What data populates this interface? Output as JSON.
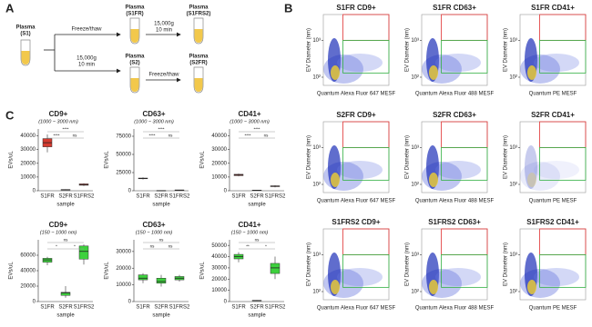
{
  "panel_labels": [
    "A",
    "B",
    "C"
  ],
  "diagram": {
    "nodes": [
      {
        "name": "Plasma",
        "id": "(S1)"
      },
      {
        "name": "Plasma",
        "id": "(S1FR)"
      },
      {
        "name": "Plasma",
        "id": "(S1FRS2)"
      },
      {
        "name": "Plasma",
        "id": "(S2)"
      },
      {
        "name": "Plasma",
        "id": "(S2FR)"
      }
    ],
    "steps": [
      {
        "lines": [
          "Freeze/thaw"
        ]
      },
      {
        "lines": [
          "15,000g",
          "10 min"
        ]
      },
      {
        "lines": [
          "15,000g",
          "10 min"
        ]
      },
      {
        "lines": [
          "Freeze/thaw"
        ]
      }
    ]
  },
  "flow_cytometry": {
    "y_label": "EV Diameter (nm)",
    "ylim": [
      60,
      5000
    ],
    "yticks": [
      {
        "value": 100,
        "label": "10²"
      },
      {
        "value": 1000,
        "label": "10³"
      }
    ],
    "plots": [
      {
        "title": "S1FR CD9+",
        "x_label": "Quantum Alexa Fluor 647 MESF"
      },
      {
        "title": "S1FR CD63+",
        "x_label": "Quantum Alexa Fluor 488 MESF"
      },
      {
        "title": "S1FR CD41+",
        "x_label": "Quantum PE MESF"
      },
      {
        "title": "S2FR CD9+",
        "x_label": "Quantum Alexa Fluor 647 MESF"
      },
      {
        "title": "S2FR CD63+",
        "x_label": "Quantum Alexa Fluor 488 MESF"
      },
      {
        "title": "S2FR CD41+",
        "x_label": "Quantum PE MESF"
      },
      {
        "title": "S1FRS2 CD9+",
        "x_label": "Quantum Alexa Fluor 647 MESF"
      },
      {
        "title": "S1FRS2 CD63+",
        "x_label": "Quantum Alexa Fluor 488 MESF"
      },
      {
        "title": "S1FRS2 CD41+",
        "x_label": "Quantum PE MESF"
      }
    ]
  },
  "chart_data": [
    {
      "type": "box",
      "title": "CD9+",
      "subtitle": "(1000 ~ 3000 nm)",
      "y_label": "EVs/uL",
      "x_label": "sample",
      "color": "#d43a2f",
      "categories": [
        "S1FR",
        "S2FR",
        "S1FRS2"
      ],
      "boxes": [
        {
          "min": 28000,
          "q1": 32000,
          "median": 35000,
          "q3": 38000,
          "max": 41000
        },
        {
          "min": 300,
          "q1": 500,
          "median": 700,
          "q3": 900,
          "max": 1100
        },
        {
          "min": 3500,
          "q1": 4000,
          "median": 4500,
          "q3": 5000,
          "max": 5500
        }
      ],
      "ylim": [
        0,
        45000
      ],
      "yticks": [
        0,
        10000,
        20000,
        30000,
        40000
      ],
      "comparisons": [
        "****",
        "ns",
        "****"
      ]
    },
    {
      "type": "box",
      "title": "CD63+",
      "subtitle": "(1000 ~ 3000 nm)",
      "y_label": "EVs/uL",
      "x_label": "sample",
      "color": "#d43a2f",
      "categories": [
        "S1FR",
        "S2FR",
        "S1FRS2"
      ],
      "boxes": [
        {
          "min": 15500,
          "q1": 16500,
          "median": 17000,
          "q3": 17500,
          "max": 18500
        },
        {
          "min": 0,
          "q1": 100,
          "median": 200,
          "q3": 300,
          "max": 400
        },
        {
          "min": 500,
          "q1": 700,
          "median": 900,
          "q3": 1100,
          "max": 1300
        }
      ],
      "ylim": [
        0,
        85000
      ],
      "yticks": [
        0,
        25000,
        50000,
        75000
      ],
      "comparisons": [
        "****",
        "ns",
        "****"
      ]
    },
    {
      "type": "box",
      "title": "CD41+",
      "subtitle": "(1000 ~ 3000 nm)",
      "y_label": "EVs/uL",
      "x_label": "sample",
      "color": "#d43a2f",
      "categories": [
        "S1FR",
        "S2FR",
        "S1FRS2"
      ],
      "boxes": [
        {
          "min": 10500,
          "q1": 11000,
          "median": 11500,
          "q3": 12000,
          "max": 12500
        },
        {
          "min": 200,
          "q1": 300,
          "median": 400,
          "q3": 500,
          "max": 600
        },
        {
          "min": 2500,
          "q1": 3000,
          "median": 3300,
          "q3": 3600,
          "max": 4000
        }
      ],
      "ylim": [
        0,
        45000
      ],
      "yticks": [
        0,
        10000,
        20000,
        30000,
        40000
      ],
      "comparisons": [
        "****",
        "ns",
        "****"
      ]
    },
    {
      "type": "box",
      "title": "CD9+",
      "subtitle": "(150 ~ 1000 nm)",
      "y_label": "EVs/uL",
      "x_label": "sample",
      "color": "#3dd13d",
      "categories": [
        "S1FR",
        "S2FR",
        "S1FRS2"
      ],
      "boxes": [
        {
          "min": 47000,
          "q1": 51000,
          "median": 54000,
          "q3": 56000,
          "max": 58000
        },
        {
          "min": 5000,
          "q1": 8000,
          "median": 11000,
          "q3": 12000,
          "max": 20000
        },
        {
          "min": 48000,
          "q1": 55000,
          "median": 65000,
          "q3": 72000,
          "max": 74000
        }
      ],
      "ylim": [
        0,
        80000
      ],
      "yticks": [
        0,
        20000,
        40000,
        60000
      ],
      "comparisons": [
        "*",
        "*",
        "ns"
      ]
    },
    {
      "type": "box",
      "title": "CD63+",
      "subtitle": "(150 ~ 1000 nm)",
      "y_label": "EVs/uL",
      "x_label": "sample",
      "color": "#3dd13d",
      "categories": [
        "S1FR",
        "S2FR",
        "S1FRS2"
      ],
      "boxes": [
        {
          "min": 11000,
          "q1": 13000,
          "median": 14000,
          "q3": 16000,
          "max": 17000
        },
        {
          "min": 9000,
          "q1": 11000,
          "median": 12000,
          "q3": 14000,
          "max": 16000
        },
        {
          "min": 12000,
          "q1": 13000,
          "median": 14000,
          "q3": 15000,
          "max": 16000
        }
      ],
      "ylim": [
        0,
        37000
      ],
      "yticks": [
        0,
        10000,
        20000,
        30000
      ],
      "comparisons": [
        "ns",
        "ns",
        "ns"
      ]
    },
    {
      "type": "box",
      "title": "CD41+",
      "subtitle": "(150 ~ 1000 nm)",
      "y_label": "EVs/uL",
      "x_label": "sample",
      "color": "#3dd13d",
      "categories": [
        "S1FR",
        "S2FR",
        "S1FRS2"
      ],
      "boxes": [
        {
          "min": 35000,
          "q1": 38000,
          "median": 40000,
          "q3": 42000,
          "max": 44000
        },
        {
          "min": 500,
          "q1": 700,
          "median": 900,
          "q3": 1100,
          "max": 1300
        },
        {
          "min": 20000,
          "q1": 25000,
          "median": 30000,
          "q3": 34000,
          "max": 40000
        }
      ],
      "ylim": [
        0,
        55000
      ],
      "yticks": [
        0,
        10000,
        20000,
        30000,
        40000,
        50000
      ],
      "comparisons": [
        "**",
        "*",
        "ns"
      ]
    }
  ]
}
